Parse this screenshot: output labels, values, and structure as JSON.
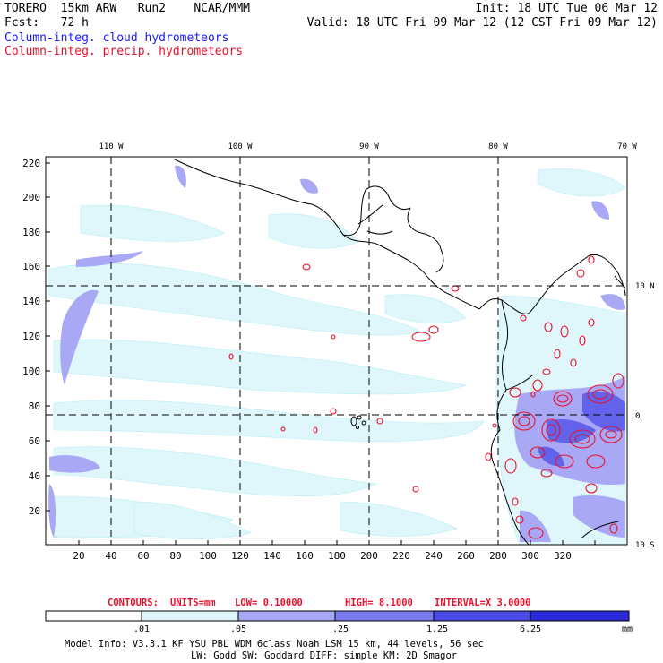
{
  "header": {
    "model": "TORERO",
    "resolution": "15km ARW",
    "run": "Run2",
    "org": "NCAR/MMM",
    "init": "Init: 18 UTC Tue 06 Mar 12",
    "fcst_label": "Fcst:",
    "fcst_value": "72 h",
    "valid": "Valid: 18 UTC Fri 09 Mar 12 (12 CST Fri 09 Mar 12)",
    "field1": "Column-integ. cloud hydrometeors",
    "field2": "Column-integ. precip. hydrometeors"
  },
  "map": {
    "lon_labels": [
      "110 W",
      "100 W",
      "90 W",
      "80 W",
      "70 W"
    ],
    "lat_labels": [
      "10 N",
      "0",
      "10 S"
    ],
    "y_ticks": [
      "220",
      "200",
      "180",
      "160",
      "140",
      "120",
      "100",
      "80",
      "60",
      "40",
      "20"
    ],
    "x_ticks": [
      "20",
      "40",
      "60",
      "80",
      "100",
      "120",
      "140",
      "160",
      "180",
      "200",
      "220",
      "240",
      "260",
      "280",
      "300",
      "320"
    ]
  },
  "contours": {
    "label": "CONTOURS:",
    "units": "UNITS=mm",
    "low": "LOW= 0.10000",
    "high": "HIGH= 8.1000",
    "interval": "INTERVAL=X 3.0000"
  },
  "colorbar": {
    "labels": [
      ".01",
      ".05",
      ".25",
      "1.25",
      "6.25"
    ],
    "unit": "mm",
    "colors": [
      "#ffffff",
      "#dff7fb",
      "#b3eef7",
      "#a8a8f5",
      "#7a7aee",
      "#4b4be6",
      "#2a2ad9"
    ]
  },
  "model_info": {
    "line1": "Model Info: V3.3.1    KF       YSU PBL   WDM 6class  Noah LSM  15 km,    44 levels,    56 sec",
    "line2": "LW: Godd SW: Goddard DIFF: simple KM: 2D Smagor"
  }
}
